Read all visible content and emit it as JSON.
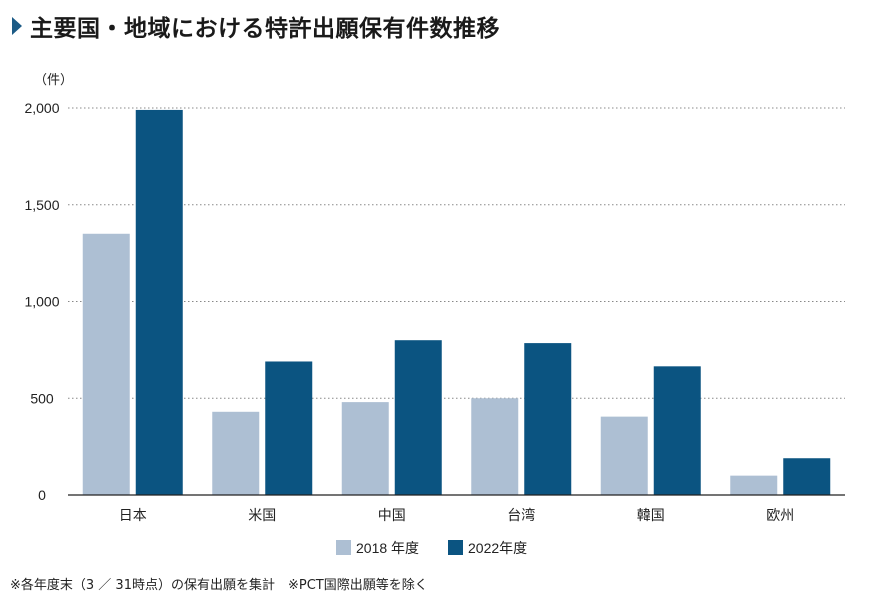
{
  "title": "主要国・地域における特許出願保有件数推移",
  "note": "※各年度末（3 ／ 31時点）の保有出願を集計　※PCT国際出願等を除く",
  "colors": {
    "accent": "#1c5b86"
  },
  "chart_data": {
    "type": "bar",
    "title": "主要国・地域における特許出願保有件数推移",
    "unit": "（件）",
    "categories": [
      "日本",
      "米国",
      "中国",
      "台湾",
      "韓国",
      "欧州"
    ],
    "series": [
      {
        "name": "2018 年度",
        "color": "#adbfd3",
        "values": [
          1350,
          430,
          480,
          500,
          405,
          100
        ]
      },
      {
        "name": "2022年度",
        "color": "#0b5481",
        "values": [
          1990,
          690,
          800,
          785,
          665,
          190
        ]
      }
    ],
    "yticks": [
      "0",
      "500",
      "1,000",
      "1,500",
      "2,000"
    ],
    "ylim": [
      0,
      2000
    ],
    "grid": true,
    "legend": "bottom-center"
  }
}
